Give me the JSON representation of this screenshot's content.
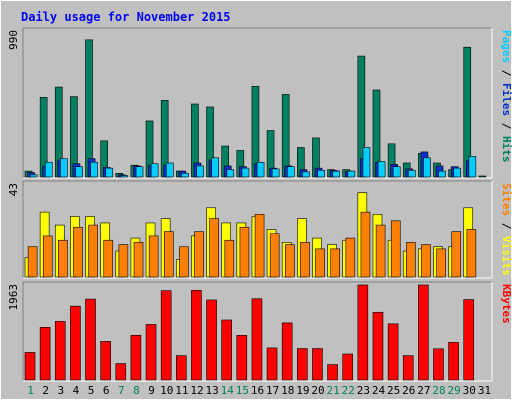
{
  "chart_data": {
    "type": "bar",
    "title": "Daily usage for November 2015",
    "categories": [
      "1",
      "2",
      "3",
      "4",
      "5",
      "6",
      "7",
      "8",
      "9",
      "10",
      "11",
      "12",
      "13",
      "14",
      "15",
      "16",
      "17",
      "18",
      "19",
      "20",
      "21",
      "22",
      "23",
      "24",
      "25",
      "26",
      "27",
      "28",
      "29",
      "30",
      "31"
    ],
    "weekend_days": [
      "1",
      "7",
      "8",
      "14",
      "15",
      "21",
      "22",
      "28",
      "29"
    ],
    "panels": [
      {
        "id": "hits",
        "scale_label": "990",
        "ymax": 990,
        "side_labels": [
          {
            "text": "Pages",
            "color": "#00ccff"
          },
          {
            "text": "Files",
            "color": "#0033cc"
          },
          {
            "text": "Hits",
            "color": "#008060"
          }
        ],
        "series": [
          {
            "name": "Hits",
            "color": "#008060",
            "values": [
              40,
              540,
              610,
              545,
              930,
              245,
              25,
              80,
              380,
              520,
              40,
              495,
              475,
              210,
              180,
              615,
              315,
              560,
              200,
              265,
              50,
              50,
              820,
              590,
              225,
              95,
              160,
              95,
              50,
              880,
              5
            ]
          },
          {
            "name": "Files",
            "color": "#0033cc",
            "values": [
              30,
              70,
              115,
              90,
              125,
              65,
              15,
              75,
              80,
              80,
              40,
              95,
              115,
              75,
              70,
              90,
              60,
              75,
              50,
              60,
              45,
              40,
              125,
              100,
              85,
              55,
              170,
              75,
              70,
              110,
              0
            ]
          },
          {
            "name": "Pages",
            "color": "#00ccff",
            "values": [
              15,
              100,
              125,
              70,
              100,
              60,
              10,
              70,
              90,
              95,
              25,
              75,
              130,
              50,
              60,
              100,
              55,
              70,
              35,
              45,
              40,
              40,
              200,
              105,
              70,
              45,
              130,
              40,
              60,
              140,
              0
            ]
          }
        ]
      },
      {
        "id": "visits",
        "scale_label": "43",
        "ymax": 43,
        "side_labels": [
          {
            "text": "Sites",
            "color": "#ff8000"
          },
          {
            "text": "Visits",
            "color": "#ffff00"
          }
        ],
        "series": [
          {
            "name": "Visits",
            "color": "#ffff00",
            "values": [
              9,
              30,
              24,
              28,
              28,
              25,
              12,
              18,
              25,
              27,
              8,
              19,
              32,
              25,
              25,
              28,
              22,
              16,
              27,
              18,
              15,
              17,
              39,
              29,
              17,
              12,
              13,
              14,
              14,
              32,
              0
            ]
          },
          {
            "name": "Sites",
            "color": "#ff8000",
            "values": [
              14,
              19,
              17,
              23,
              24,
              17,
              15,
              16,
              19,
              21,
              14,
              21,
              27,
              17,
              23,
              29,
              20,
              15,
              16,
              13,
              13,
              18,
              30,
              24,
              26,
              16,
              15,
              13,
              21,
              22,
              0
            ]
          }
        ]
      },
      {
        "id": "kbytes",
        "scale_label": "1963",
        "ymax": 1963,
        "side_labels": [
          {
            "text": "KBytes",
            "color": "#ff0000"
          }
        ],
        "series": [
          {
            "name": "KBytes",
            "color": "#ff0000",
            "values": [
              570,
              1088,
              1210,
              1526,
              1672,
              798,
              339,
              924,
              1149,
              1846,
              504,
              1853,
              1654,
              1240,
              923,
              1679,
              663,
              1180,
              650,
              650,
              319,
              537,
              1963,
              1400,
              1160,
              504,
              1963,
              645,
              777,
              1663,
              0
            ]
          }
        ]
      }
    ]
  }
}
